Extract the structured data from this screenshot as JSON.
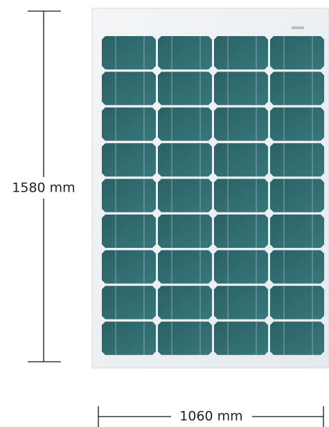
{
  "dimensions": {
    "height": "1580 mm",
    "width": "1060 mm"
  }
}
